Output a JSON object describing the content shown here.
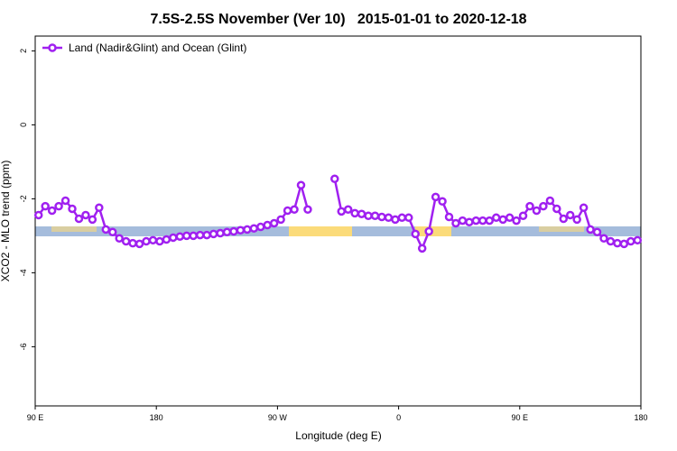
{
  "chart_data": {
    "type": "line",
    "title": "7.5S-2.5S November (Ver 10)   2015-01-01 to 2020-12-18",
    "x_label": "Longitude (deg E)",
    "y_label": "XCO2 - MLO trend (ppm)",
    "xlim": [
      90,
      540
    ],
    "ylim": [
      -7.6,
      2.4
    ],
    "xticks": [
      {
        "value": 90,
        "label": "90 E"
      },
      180,
      {
        "value": 270,
        "label": "90 W"
      },
      {
        "value": 360,
        "label": "0"
      },
      {
        "value": 450,
        "label": "90 E"
      },
      {
        "value": 540,
        "label": "180"
      }
    ],
    "yticks": [
      2,
      0,
      -2,
      -4,
      -6
    ],
    "legend": "top-left",
    "x": [
      92.5,
      97.5,
      102.5,
      107.5,
      112.5,
      117.5,
      122.5,
      127.5,
      132.5,
      137.5,
      142.5,
      147.5,
      152.5,
      157.5,
      162.5,
      167.5,
      172.5,
      177.5,
      182.5,
      187.5,
      192.5,
      197.5,
      202.5,
      207.5,
      212.5,
      217.5,
      222.5,
      227.5,
      232.5,
      237.5,
      242.5,
      247.5,
      252.5,
      257.5,
      262.5,
      267.5,
      272.5,
      277.5,
      282.5,
      287.5,
      292.5,
      297.5,
      302.5,
      307.5,
      312.5,
      317.5,
      322.5,
      327.5,
      332.5,
      337.5,
      342.5,
      347.5,
      352.5,
      357.5,
      362.5,
      367.5,
      372.5,
      377.5,
      382.5,
      387.5,
      392.5,
      397.5,
      402.5,
      407.5,
      412.5,
      417.5,
      422.5,
      427.5,
      432.5,
      437.5,
      442.5,
      447.5,
      452.5,
      457.5,
      462.5,
      467.5,
      472.5,
      477.5,
      482.5,
      487.5,
      492.5,
      497.5,
      502.5,
      507.5,
      512.5,
      517.5,
      522.5,
      527.5,
      532.5,
      537.5
    ],
    "series": [
      {
        "name": "Land (Nadir&Glint) and Ocean (Glint)",
        "color": "#a020f0",
        "values": [
          -2.44,
          -2.2,
          -2.32,
          -2.2,
          -2.05,
          -2.27,
          -2.54,
          -2.44,
          -2.56,
          -2.24,
          -2.83,
          -2.9,
          -3.07,
          -3.15,
          -3.2,
          -3.22,
          -3.15,
          -3.12,
          -3.15,
          -3.1,
          -3.05,
          -3.02,
          -3.0,
          -3.0,
          -2.98,
          -2.98,
          -2.95,
          -2.93,
          -2.9,
          -2.88,
          -2.85,
          -2.83,
          -2.8,
          -2.76,
          -2.71,
          -2.66,
          -2.56,
          -2.32,
          -2.29,
          -1.63,
          -2.29,
          null,
          null,
          null,
          -1.46,
          -2.34,
          -2.29,
          -2.39,
          -2.41,
          -2.46,
          -2.46,
          -2.49,
          -2.51,
          -2.56,
          -2.51,
          -2.51,
          -2.95,
          -3.34,
          -2.88,
          -1.95,
          -2.07,
          -2.49,
          -2.66,
          -2.59,
          -2.63,
          -2.59,
          -2.59,
          -2.59,
          -2.51,
          -2.56,
          -2.51,
          -2.59,
          -2.46,
          -2.2,
          -2.32,
          -2.2,
          -2.05,
          -2.27,
          -2.54,
          -2.44,
          -2.56,
          -2.24,
          -2.83,
          -2.9,
          -3.07,
          -3.15,
          -3.2,
          -3.22,
          -3.15,
          -3.12
        ]
      }
    ]
  }
}
